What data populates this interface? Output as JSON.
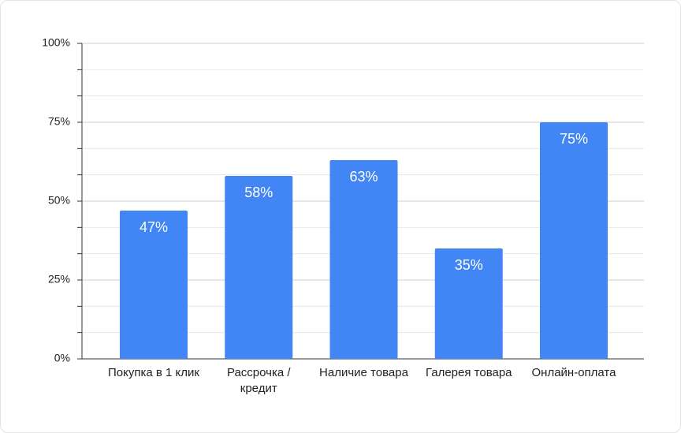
{
  "chart_data": {
    "type": "bar",
    "categories": [
      "Покупка в 1 клик",
      "Рассрочка / кредит",
      "Наличие товара",
      "Галерея товара",
      "Онлайн-оплата"
    ],
    "values": [
      47,
      58,
      63,
      35,
      75
    ],
    "value_labels": [
      "47%",
      "58%",
      "63%",
      "35%",
      "75%"
    ],
    "color": "#4285f4",
    "ylim": [
      0,
      100
    ],
    "yticks": [
      {
        "value": 0,
        "label": "0%"
      },
      {
        "value": 25,
        "label": "25%"
      },
      {
        "value": 50,
        "label": "50%"
      },
      {
        "value": 75,
        "label": "75%"
      },
      {
        "value": 100,
        "label": "100%"
      }
    ],
    "grid": true,
    "minor_divisions": 3
  }
}
